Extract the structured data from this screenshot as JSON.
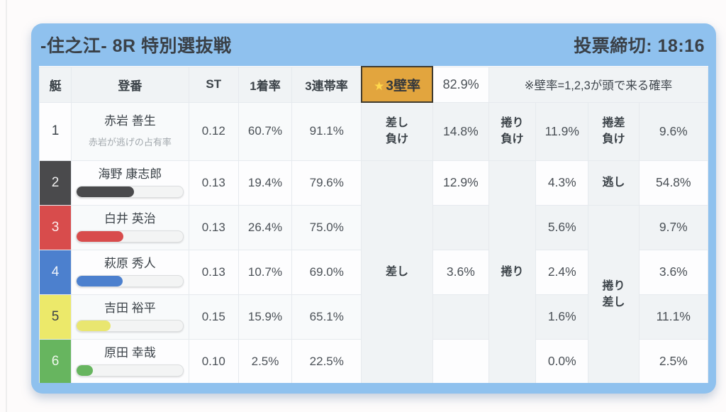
{
  "header": {
    "title": "-住之江- 8R 特別選抜戦",
    "deadline": "投票締切: 18:16"
  },
  "table": {
    "col_headers": {
      "boat": "艇",
      "racer": "登番",
      "st": "ST",
      "win_rate": "1着率",
      "top3_rate": "3連帯率"
    },
    "wall": {
      "star": "★",
      "button_label": "3壁率",
      "value": "82.9%",
      "note": "※壁率=1,2,3が頭で来る確率"
    },
    "merged_labels": {
      "sashi": "差し",
      "makuri": "捲り",
      "makuri_zashi": "捲り\n差し"
    },
    "rows": [
      {
        "boat": "1",
        "name": "赤岩 善生",
        "subtitle": "赤岩が逃げの占有率",
        "st": "0.12",
        "win": "60.7%",
        "top3": "91.1%",
        "c1_label": "差し\n負け",
        "c1": "14.8%",
        "c2_label": "捲り\n負け",
        "c2": "11.9%",
        "c3_label": "捲差\n負け",
        "c3": "9.6%"
      },
      {
        "boat": "2",
        "name": "海野 康志郎",
        "bar_percent": 54,
        "st": "0.13",
        "win": "19.4%",
        "top3": "79.6%",
        "c1": "12.9%",
        "c2": "4.3%",
        "c3_label": "逃し",
        "c3": "54.8%"
      },
      {
        "boat": "3",
        "name": "白井 英治",
        "bar_percent": 44,
        "st": "0.13",
        "win": "26.4%",
        "top3": "75.0%",
        "c1": "",
        "c2": "5.6%",
        "c3": "9.7%"
      },
      {
        "boat": "4",
        "name": "萩原 秀人",
        "bar_percent": 43,
        "st": "0.13",
        "win": "10.7%",
        "top3": "69.0%",
        "c1": "3.6%",
        "c2": "2.4%",
        "c3": "3.6%"
      },
      {
        "boat": "5",
        "name": "吉田 裕平",
        "bar_percent": 32,
        "st": "0.15",
        "win": "15.9%",
        "top3": "65.1%",
        "c1": "",
        "c2": "1.6%",
        "c3": "11.1%"
      },
      {
        "boat": "6",
        "name": "原田 幸哉",
        "bar_percent": 15,
        "st": "0.10",
        "win": "2.5%",
        "top3": "22.5%",
        "c1": "",
        "c2": "0.0%",
        "c3": "2.5%"
      }
    ]
  },
  "colors": {
    "frame_blue": "#8fc1ee",
    "accent_orange": "#e2a53e",
    "star_yellow": "#ffd84d",
    "label_gray": "#f0f3f5",
    "boat_colors": {
      "1": "#fdfdfe",
      "2": "#4a4a4c",
      "3": "#d84c4c",
      "4": "#4c80ce",
      "5": "#ece96a",
      "6": "#67b55f"
    }
  }
}
